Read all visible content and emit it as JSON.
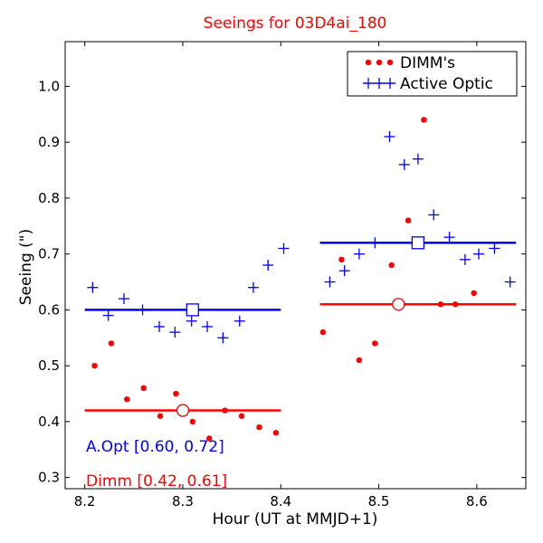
{
  "chart_data": {
    "type": "scatter",
    "title": "Seeings for 03D4ai_180",
    "xlabel": "Hour (UT at MMJD+1)",
    "ylabel": "Seeing (\")",
    "xlim": [
      8.18,
      8.65
    ],
    "ylim": [
      0.28,
      1.08
    ],
    "x_ticks": [
      8.2,
      8.3,
      8.4,
      8.5,
      8.6
    ],
    "x_tick_labels": [
      "8.2",
      "8.3",
      "8.4",
      "8.5",
      "8.6"
    ],
    "y_ticks": [
      0.3,
      0.4,
      0.5,
      0.6,
      0.7,
      0.8,
      0.9,
      1.0
    ],
    "y_tick_labels": [
      "0.3",
      "0.4",
      "0.5",
      "0.6",
      "0.7",
      "0.8",
      "0.9",
      "1.0"
    ],
    "grid": false,
    "legend_position": "top-right",
    "series": [
      {
        "name": "DIMM's",
        "marker": "dot",
        "color": "#ff0000",
        "points": [
          [
            8.21,
            0.5
          ],
          [
            8.227,
            0.54
          ],
          [
            8.243,
            0.44
          ],
          [
            8.26,
            0.46
          ],
          [
            8.277,
            0.41
          ],
          [
            8.293,
            0.45
          ],
          [
            8.31,
            0.4
          ],
          [
            8.327,
            0.37
          ],
          [
            8.343,
            0.42
          ],
          [
            8.36,
            0.41
          ],
          [
            8.378,
            0.39
          ],
          [
            8.395,
            0.38
          ],
          [
            8.443,
            0.56
          ],
          [
            8.462,
            0.69
          ],
          [
            8.48,
            0.51
          ],
          [
            8.496,
            0.54
          ],
          [
            8.513,
            0.68
          ],
          [
            8.53,
            0.76
          ],
          [
            8.546,
            0.94
          ],
          [
            8.563,
            0.61
          ],
          [
            8.578,
            0.61
          ],
          [
            8.597,
            0.63
          ]
        ]
      },
      {
        "name": "Active Optic",
        "marker": "plus",
        "color": "#0000ff",
        "points": [
          [
            8.208,
            0.64
          ],
          [
            8.224,
            0.59
          ],
          [
            8.24,
            0.62
          ],
          [
            8.259,
            0.6
          ],
          [
            8.276,
            0.57
          ],
          [
            8.292,
            0.56
          ],
          [
            8.309,
            0.58
          ],
          [
            8.325,
            0.57
          ],
          [
            8.341,
            0.55
          ],
          [
            8.358,
            0.58
          ],
          [
            8.372,
            0.64
          ],
          [
            8.387,
            0.68
          ],
          [
            8.403,
            0.71
          ],
          [
            8.45,
            0.65
          ],
          [
            8.465,
            0.67
          ],
          [
            8.48,
            0.7
          ],
          [
            8.496,
            0.72
          ],
          [
            8.511,
            0.91
          ],
          [
            8.526,
            0.86
          ],
          [
            8.54,
            0.87
          ],
          [
            8.556,
            0.77
          ],
          [
            8.572,
            0.73
          ],
          [
            8.588,
            0.69
          ],
          [
            8.602,
            0.7
          ],
          [
            8.618,
            0.71
          ],
          [
            8.634,
            0.65
          ]
        ]
      }
    ],
    "mean_lines": [
      {
        "series": "Active Optic",
        "color": "#0000ff",
        "x_start": 8.2,
        "x_end": 8.4,
        "y": 0.6,
        "marker": "square",
        "marker_x": 8.31
      },
      {
        "series": "Active Optic",
        "color": "#0000ff",
        "x_start": 8.44,
        "x_end": 8.64,
        "y": 0.72,
        "marker": "square",
        "marker_x": 8.54
      },
      {
        "series": "DIMM's",
        "color": "#ff0000",
        "x_start": 8.2,
        "x_end": 8.4,
        "y": 0.42,
        "marker": "circle",
        "marker_x": 8.3
      },
      {
        "series": "DIMM's",
        "color": "#ff0000",
        "x_start": 8.44,
        "x_end": 8.64,
        "y": 0.61,
        "marker": "circle",
        "marker_x": 8.52
      }
    ],
    "annotations": [
      {
        "text": "A.Opt [0.60, 0.72]",
        "color": "#0000ff"
      },
      {
        "text": "Dimm [0.42, 0.61]",
        "color": "#ff0000"
      }
    ]
  }
}
